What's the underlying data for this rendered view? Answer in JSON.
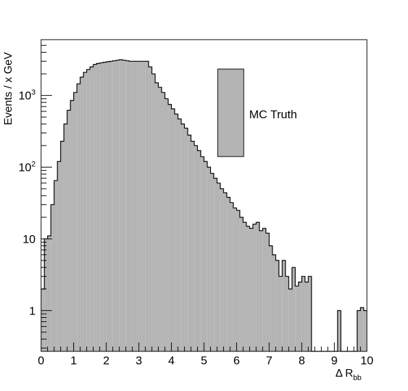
{
  "chart_data": {
    "type": "bar",
    "subtype": "histogram",
    "xlabel": "Δ R",
    "xlabel_subscript": "bb",
    "ylabel": "Events / x GeV",
    "xlim": [
      0,
      10
    ],
    "ylim": [
      0.27,
      6000
    ],
    "yscale": "log",
    "grid": false,
    "legend_position": "top-right",
    "fill_color": "#b4b4b4",
    "line_color": "#000000",
    "series": [
      {
        "name": "MC Truth"
      }
    ],
    "x_ticks": [
      {
        "value": 0,
        "label": "0"
      },
      {
        "value": 1,
        "label": "1"
      },
      {
        "value": 2,
        "label": "2"
      },
      {
        "value": 3,
        "label": "3"
      },
      {
        "value": 4,
        "label": "4"
      },
      {
        "value": 5,
        "label": "5"
      },
      {
        "value": 6,
        "label": "6"
      },
      {
        "value": 7,
        "label": "7"
      },
      {
        "value": 8,
        "label": "8"
      },
      {
        "value": 9,
        "label": "9"
      },
      {
        "value": 10,
        "label": "10"
      }
    ],
    "y_ticks": [
      {
        "value": 1,
        "label": "1",
        "exp": ""
      },
      {
        "value": 10,
        "label": "10",
        "exp": ""
      },
      {
        "value": 100,
        "label": "10",
        "exp": "2"
      },
      {
        "value": 1000,
        "label": "10",
        "exp": "3"
      }
    ],
    "bin_edges_start": 0,
    "bin_width": 0.1,
    "values": [
      2,
      10,
      11,
      30,
      65,
      120,
      230,
      400,
      620,
      850,
      1100,
      1450,
      1800,
      2100,
      2300,
      2500,
      2700,
      2800,
      2850,
      2900,
      2950,
      3000,
      3050,
      3100,
      3150,
      3100,
      3050,
      3000,
      3000,
      3000,
      3000,
      3000,
      3000,
      2500,
      2000,
      1500,
      1300,
      1100,
      900,
      750,
      650,
      550,
      470,
      400,
      350,
      280,
      230,
      200,
      170,
      140,
      120,
      100,
      82,
      70,
      60,
      50,
      44,
      38,
      32,
      27,
      25,
      20,
      17,
      15,
      14,
      16,
      17,
      13,
      14,
      12,
      8,
      6,
      5,
      3,
      5,
      3,
      2,
      4,
      2.2,
      2.5,
      3,
      2.5,
      3,
      0,
      0,
      0,
      0,
      0,
      0,
      0,
      0,
      1,
      0,
      0,
      0,
      0,
      0,
      1,
      1.1,
      1
    ]
  }
}
